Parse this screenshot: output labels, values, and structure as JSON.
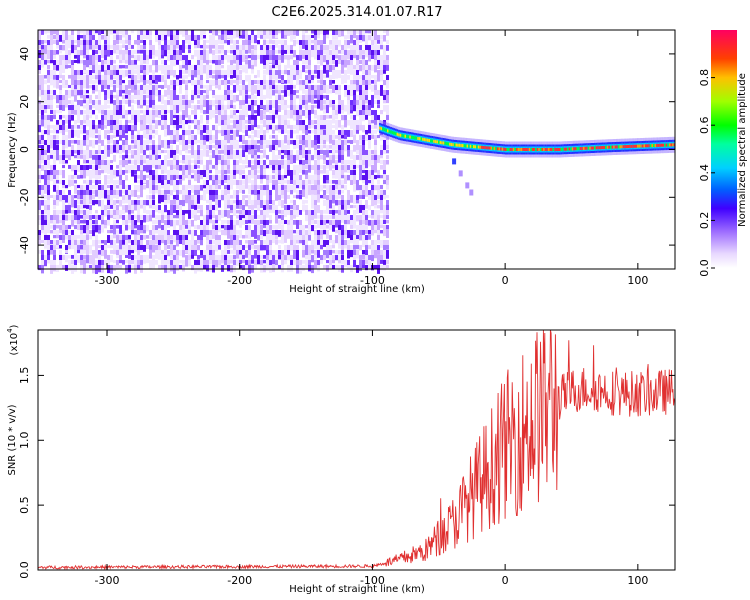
{
  "title": "C2E6.2025.314.01.07.R17",
  "chart_data": [
    {
      "type": "heatmap",
      "name": "spectrogram",
      "xlabel": "Height of straight line (km)",
      "ylabel": "Frequency (Hz)",
      "xlim": [
        -352,
        128
      ],
      "ylim": [
        -50,
        50
      ],
      "xticks": [
        -300,
        -200,
        -100,
        0,
        100
      ],
      "yticks": [
        40,
        20,
        0,
        -20,
        -40
      ],
      "colorbar": {
        "label": "Normalized spectral amplitude",
        "range": [
          0.0,
          1.0
        ],
        "ticks": [
          0.0,
          0.2,
          0.4,
          0.6,
          0.8
        ]
      },
      "noise_region_x": [
        -352,
        -88
      ],
      "signal_track": {
        "x": [
          -95,
          -80,
          -60,
          -40,
          -20,
          0,
          40,
          80,
          128
        ],
        "freq": [
          9,
          6,
          4,
          2,
          1,
          0,
          0,
          1,
          2
        ]
      },
      "side_branch": {
        "x": [
          -40,
          -35,
          -30,
          -27
        ],
        "freq": [
          -5,
          -10,
          -15,
          -18
        ]
      }
    },
    {
      "type": "line",
      "name": "snr",
      "xlabel": "Height of straight line (km)",
      "ylabel": "SNR (10 * v/v)",
      "exponent_label": "(x10",
      "exponent_power": "4",
      "exponent_close": ")",
      "xlim": [
        -352,
        128
      ],
      "ylim": [
        0,
        18500
      ],
      "xticks": [
        -300,
        -200,
        -100,
        0,
        100
      ],
      "yticks": [
        0.0,
        0.5,
        1.0,
        1.5
      ],
      "ytick_labels": [
        "0.0",
        "0.5",
        "1.0",
        "1.5"
      ],
      "color": "#e03030",
      "envelope": {
        "x": [
          -352,
          -100,
          -80,
          -60,
          -50,
          -40,
          -30,
          -20,
          -10,
          0,
          10,
          20,
          30,
          40,
          50,
          60,
          70,
          80,
          90,
          100,
          110,
          128
        ],
        "y": [
          200,
          300,
          800,
          1500,
          2500,
          3500,
          5000,
          6500,
          8000,
          9500,
          10500,
          11500,
          12500,
          13200,
          13800,
          14000,
          13900,
          13700,
          13600,
          13600,
          13600,
          13800
        ]
      }
    }
  ]
}
